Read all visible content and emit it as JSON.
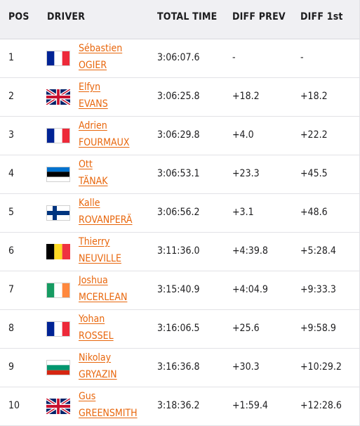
{
  "header": {
    "pos": "POS",
    "driver": "DRIVER",
    "total_time": "TOTAL TIME",
    "diff_prev": "DIFF PREV",
    "diff_first": "DIFF 1st"
  },
  "rows": [
    {
      "pos": "1",
      "flag": "france-flag-icon",
      "first": "Sébastien",
      "last": "OGIER",
      "total_time": "3:06:07.6",
      "diff_prev": "-",
      "diff_first": "-"
    },
    {
      "pos": "2",
      "flag": "uk-flag-icon",
      "first": "Elfyn",
      "last": "EVANS",
      "total_time": "3:06:25.8",
      "diff_prev": "+18.2",
      "diff_first": "+18.2"
    },
    {
      "pos": "3",
      "flag": "france-flag-icon",
      "first": "Adrien",
      "last": "FOURMAUX",
      "total_time": "3:06:29.8",
      "diff_prev": "+4.0",
      "diff_first": "+22.2"
    },
    {
      "pos": "4",
      "flag": "estonia-flag-icon",
      "first": "Ott",
      "last": "TÄNAK",
      "total_time": "3:06:53.1",
      "diff_prev": "+23.3",
      "diff_first": "+45.5"
    },
    {
      "pos": "5",
      "flag": "finland-flag-icon",
      "first": "Kalle",
      "last": "ROVANPERÄ",
      "total_time": "3:06:56.2",
      "diff_prev": "+3.1",
      "diff_first": "+48.6"
    },
    {
      "pos": "6",
      "flag": "belgium-flag-icon",
      "first": "Thierry",
      "last": "NEUVILLE",
      "total_time": "3:11:36.0",
      "diff_prev": "+4:39.8",
      "diff_first": "+5:28.4"
    },
    {
      "pos": "7",
      "flag": "ireland-flag-icon",
      "first": "Joshua",
      "last": "MCERLEAN",
      "total_time": "3:15:40.9",
      "diff_prev": "+4:04.9",
      "diff_first": "+9:33.3"
    },
    {
      "pos": "8",
      "flag": "france-flag-icon",
      "first": "Yohan",
      "last": "ROSSEL",
      "total_time": "3:16:06.5",
      "diff_prev": "+25.6",
      "diff_first": "+9:58.9"
    },
    {
      "pos": "9",
      "flag": "bulgaria-flag-icon",
      "first": "Nikolay",
      "last": "GRYAZIN",
      "total_time": "3:16:36.8",
      "diff_prev": "+30.3",
      "diff_first": "+10:29.2"
    },
    {
      "pos": "10",
      "flag": "uk-flag-icon",
      "first": "Gus",
      "last": "GREENSMITH",
      "total_time": "3:18:36.2",
      "diff_prev": "+1:59.4",
      "diff_first": "+12:28.6"
    }
  ],
  "colors": {
    "link": "#e8660c",
    "header_bg": "#f0f0f3",
    "border": "#e2e2e6"
  }
}
